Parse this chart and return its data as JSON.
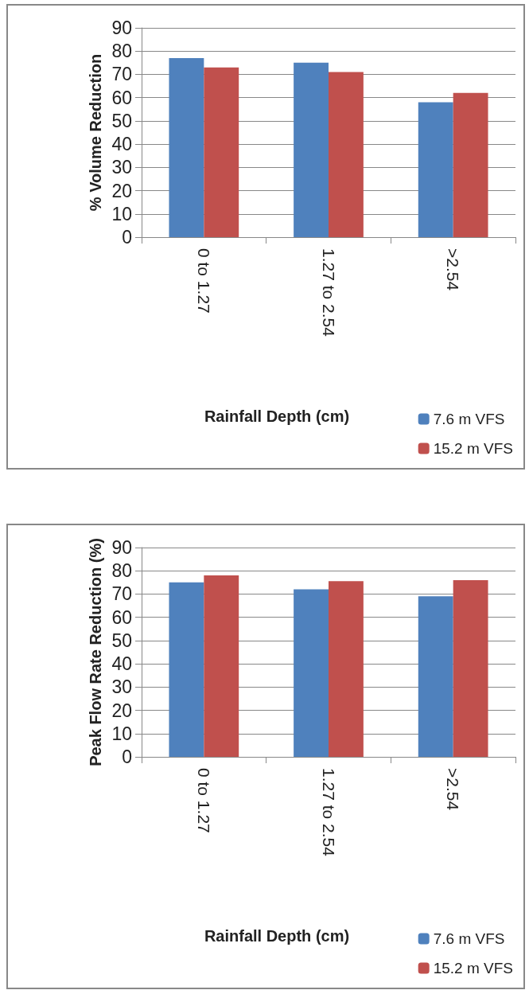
{
  "chart_data": [
    {
      "type": "bar",
      "xlabel": "Rainfall Depth (cm)",
      "ylabel": "% Volume Reduction",
      "categories": [
        "0 to 1.27",
        "1.27 to 2.54",
        ">2.54"
      ],
      "series": [
        {
          "name": "7.6 m VFS",
          "color": "#4f81bd",
          "values": [
            77,
            75,
            58
          ]
        },
        {
          "name": "15.2 m VFS",
          "color": "#c0504d",
          "values": [
            73,
            71,
            62
          ]
        }
      ],
      "ylim": [
        0,
        90
      ],
      "yticks": [
        0,
        10,
        20,
        30,
        40,
        50,
        60,
        70,
        80,
        90
      ],
      "grid": "y",
      "legend": "bottom right"
    },
    {
      "type": "bar",
      "xlabel": "Rainfall Depth (cm)",
      "ylabel": "Peak Flow Rate Reduction (%)",
      "categories": [
        "0 to 1.27",
        "1.27 to 2.54",
        ">2.54"
      ],
      "series": [
        {
          "name": "7.6 m VFS",
          "color": "#4f81bd",
          "values": [
            75,
            72,
            69
          ]
        },
        {
          "name": "15.2 m VFS",
          "color": "#c0504d",
          "values": [
            78,
            75.5,
            76
          ]
        }
      ],
      "ylim": [
        0,
        90
      ],
      "yticks": [
        0,
        10,
        20,
        30,
        40,
        50,
        60,
        70,
        80,
        90
      ],
      "grid": "y",
      "legend": "bottom right"
    }
  ]
}
